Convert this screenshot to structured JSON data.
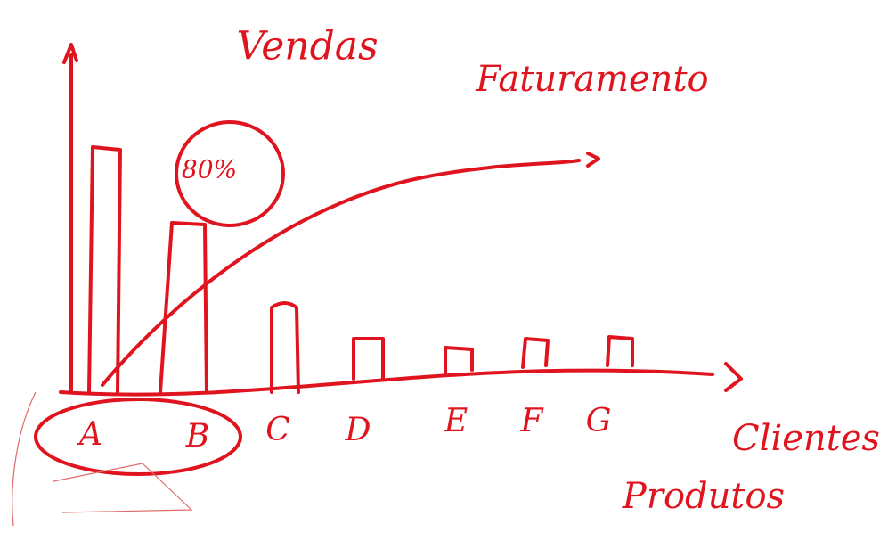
{
  "titles": {
    "bars": "Vendas",
    "curve": "Faturamento",
    "threshold": "80%"
  },
  "categories": [
    "A",
    "B",
    "C",
    "D",
    "E",
    "F",
    "G"
  ],
  "axis_labels": {
    "x_top": "Clientes",
    "x_bottom": "Produtos"
  }
}
